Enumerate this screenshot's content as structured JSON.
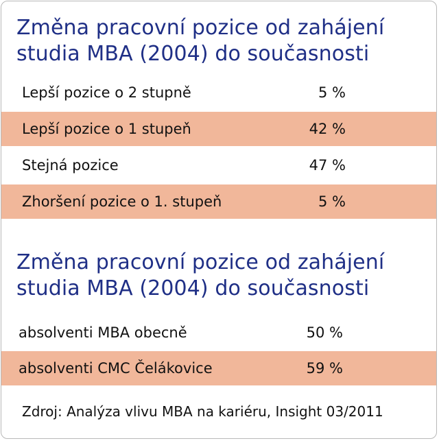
{
  "colors": {
    "title": "#1f2f86",
    "highlight_row": "#f1b79a",
    "text": "#111111",
    "border": "#b8b8b8",
    "background": "#ffffff"
  },
  "chart_data": [
    {
      "type": "table",
      "title_line1": "Změna pracovní pozice od zahájení",
      "title_line2": "studia MBA (2004) do současnosti",
      "rows": [
        {
          "label": "Lepší pozice o 2 stupně",
          "value": "5 %",
          "value_num": 5,
          "highlighted": false
        },
        {
          "label": "Lepší pozice o 1 stupeň",
          "value": "42 %",
          "value_num": 42,
          "highlighted": true
        },
        {
          "label": "Stejná pozice",
          "value": "47 %",
          "value_num": 47,
          "highlighted": false
        },
        {
          "label": "Zhoršení pozice o 1. stupeň",
          "value": "5 %",
          "value_num": 5,
          "highlighted": true
        }
      ]
    },
    {
      "type": "table",
      "title_line1": "Změna pracovní pozice od zahájení",
      "title_line2": "studia MBA (2004) do současnosti",
      "rows": [
        {
          "label": "absolventi MBA obecně",
          "value": "50 %",
          "value_num": 50,
          "highlighted": false
        },
        {
          "label": "absolventi CMC Čelákovice",
          "value": "59 %",
          "value_num": 59,
          "highlighted": true
        }
      ]
    }
  ],
  "source": "Zdroj: Analýza vlivu MBA na kariéru, Insight 03/2011"
}
